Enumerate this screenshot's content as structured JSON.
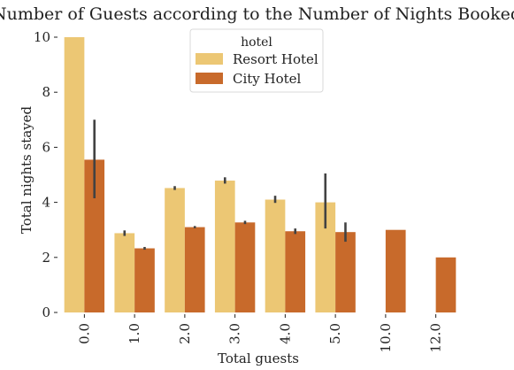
{
  "chart_data": {
    "type": "bar",
    "title": "Number of Guests according to the Number of Nights Booked",
    "xlabel": "Total guests",
    "ylabel": "Total nights stayed",
    "categories": [
      "0.0",
      "1.0",
      "2.0",
      "3.0",
      "4.0",
      "5.0",
      "10.0",
      "12.0"
    ],
    "ylim": [
      0,
      10
    ],
    "yticks": [
      0,
      2,
      4,
      6,
      8,
      10
    ],
    "grid": false,
    "legend": {
      "title": "hotel",
      "placement": "top-center"
    },
    "series": [
      {
        "name": "Resort Hotel",
        "color": "#ecc774",
        "values": [
          10.0,
          2.88,
          4.52,
          4.79,
          4.1,
          4.0,
          null,
          null
        ],
        "error_low": [
          10.0,
          2.78,
          4.45,
          4.68,
          3.98,
          3.05,
          null,
          null
        ],
        "error_high": [
          10.0,
          2.98,
          4.59,
          4.91,
          4.24,
          5.05,
          null,
          null
        ]
      },
      {
        "name": "City Hotel",
        "color": "#c86a2b",
        "values": [
          5.55,
          2.33,
          3.1,
          3.27,
          2.95,
          2.92,
          3.0,
          2.0
        ],
        "error_low": [
          4.15,
          2.28,
          3.06,
          3.21,
          2.85,
          2.57,
          null,
          null
        ],
        "error_high": [
          7.0,
          2.38,
          3.14,
          3.33,
          3.05,
          3.27,
          null,
          null
        ]
      }
    ]
  }
}
